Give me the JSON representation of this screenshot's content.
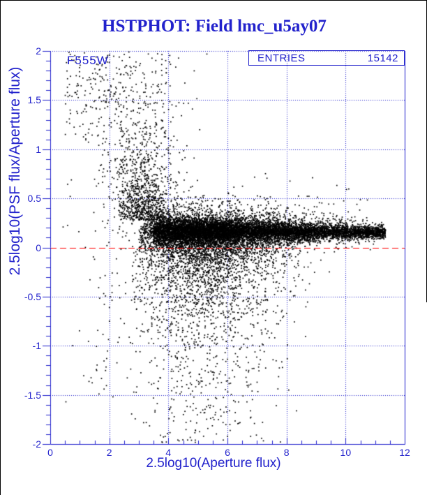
{
  "title": "HSTPHOT: Field lmc_u5ay07",
  "colors": {
    "accent": "#2222cc",
    "points": "#000000",
    "zero_line": "#ff0000",
    "background": "#ffffff",
    "window_border": "#000000"
  },
  "plot": {
    "filter": "F555W",
    "entries_label": "ENTRIES",
    "entries_value": "15142",
    "zero_line_y": 0,
    "x_axis": {
      "title": "2.5log10(Aperture flux)",
      "min": 0,
      "max": 12,
      "tick_values": [
        0,
        2,
        4,
        6,
        8,
        10,
        12
      ],
      "tick_labels": [
        "0",
        "2",
        "4",
        "6",
        "8",
        "10",
        "12"
      ],
      "minor_step": 0.5,
      "gridline_values": [
        2,
        4,
        6,
        8,
        10
      ]
    },
    "y_axis": {
      "title": "2.5log10(PSF flux/Aperture flux)",
      "min": -2,
      "max": 2,
      "tick_values": [
        2,
        1.5,
        1,
        0.5,
        0,
        -0.5,
        -1,
        -1.5,
        -2
      ],
      "tick_labels": [
        "2",
        "1.5",
        "1",
        "0.5",
        "0",
        "-0.5",
        "-1",
        "-1.5",
        "-2"
      ],
      "minor_step": 0.1,
      "gridline_values": [
        2,
        1.5,
        1,
        0.5,
        -0.5,
        -1,
        -1.5
      ]
    }
  },
  "chart_data": {
    "type": "scatter",
    "title": "HSTPHOT: Field lmc_u5ay07",
    "xlabel": "2.5log10(Aperture flux)",
    "ylabel": "2.5log10(PSF flux/Aperture flux)",
    "xlim": [
      0,
      12
    ],
    "ylim": [
      -2,
      2
    ],
    "n_points": 15142,
    "legend": "none",
    "grid": "dotted blue at x=2,4,6,8,10 and y=2,1.5,1,0.5,-0.5,-1,-1.5",
    "reference_line": {
      "y": 0,
      "color": "#ff0000",
      "style": "dashed"
    },
    "description": "PSF/aperture flux ratio vs aperture flux: tight stellar locus at y~0.15 spanning x~3.5-11.4, funnel of scatter toward faint fluxes (x<6) reaching y=-2..+2, sparse cloud at x<3 with y>1",
    "band": {
      "center": [
        0.175,
        -0.002
      ],
      "sigma": [
        0.095,
        -0.006,
        0.022
      ]
    },
    "seed": 7,
    "point_size": 1.7,
    "components": [
      {
        "n": 5200,
        "x": {
          "d": "u",
          "a": 3.5,
          "b": 11.35
        },
        "y": {
          "d": "band",
          "t": 1
        }
      },
      {
        "n": 2600,
        "x": {
          "d": "n",
          "m": 4.9,
          "s": 1.05,
          "lo": 3.05,
          "hi": 11.35
        },
        "y": {
          "d": "band",
          "t": 1
        }
      },
      {
        "n": 1300,
        "x": {
          "d": "u",
          "a": 3.6,
          "b": 9.0
        },
        "y": {
          "d": "band",
          "t": 1
        }
      },
      {
        "n": 1900,
        "x": {
          "d": "n",
          "m": 5.6,
          "s": 1.6,
          "lo": 3.0,
          "hi": 11.35
        },
        "y": {
          "d": "band",
          "t": 2.6
        }
      },
      {
        "n": 400,
        "x": {
          "d": "u",
          "a": 7.0,
          "b": 11.3
        },
        "y": {
          "d": "band",
          "t": 2.2
        }
      },
      {
        "n": 2100,
        "x": {
          "d": "n",
          "m": 5.3,
          "s": 1.35,
          "lo": 2.75,
          "hi": 10.3
        },
        "y": {
          "d": "ed",
          "b": 0.06,
          "m": 0.4,
          "lo": -2.1
        }
      },
      {
        "n": 330,
        "x": {
          "d": "n",
          "m": 4.8,
          "s": 1.15,
          "lo": 2.6,
          "hi": 8.5
        },
        "y": {
          "d": "u",
          "a": -2.05,
          "b": -0.05
        }
      },
      {
        "n": 780,
        "x": {
          "d": "n",
          "m": 3.15,
          "s": 0.55,
          "lo": 2.3,
          "hi": 5.2
        },
        "y": {
          "d": "eu",
          "b": 0.28,
          "m": 0.3,
          "hi": 2.05
        }
      },
      {
        "n": 210,
        "x": {
          "d": "n",
          "m": 3.3,
          "s": 0.8,
          "lo": 1.6,
          "hi": 5.5
        },
        "y": {
          "d": "u",
          "a": 0.35,
          "b": 2.0
        }
      },
      {
        "n": 260,
        "x": {
          "d": "n",
          "m": 2.9,
          "s": 0.7,
          "lo": 1.3,
          "hi": 4.4
        },
        "y": {
          "d": "n",
          "m": 0.8,
          "s": 0.5,
          "lo": -0.4,
          "hi": 2.0
        }
      },
      {
        "n": 120,
        "x": {
          "d": "u",
          "a": 0.5,
          "b": 2.75
        },
        "y": {
          "d": "u",
          "a": 1.05,
          "b": 2.0
        }
      },
      {
        "n": 60,
        "x": {
          "d": "n",
          "m": 1.45,
          "s": 0.45,
          "lo": 0.35,
          "hi": 2.6
        },
        "y": {
          "d": "n",
          "m": 1.65,
          "s": 0.22,
          "lo": 1.1,
          "hi": 2.0
        }
      },
      {
        "n": 28,
        "x": {
          "d": "u",
          "a": 0.35,
          "b": 2.7
        },
        "y": {
          "d": "u",
          "a": -1.6,
          "b": 0.95
        }
      },
      {
        "n": 40,
        "x": {
          "d": "n",
          "m": 1.95,
          "s": 0.3,
          "lo": 1.0,
          "hi": 2.6
        },
        "y": {
          "d": "u",
          "a": -1.45,
          "b": -0.15
        }
      },
      {
        "n": 150,
        "x": {
          "d": "u",
          "a": 4.5,
          "b": 10.8
        },
        "y": {
          "d": "eu",
          "b": 0.24,
          "m": 0.12,
          "hi": 0.85
        }
      }
    ]
  }
}
